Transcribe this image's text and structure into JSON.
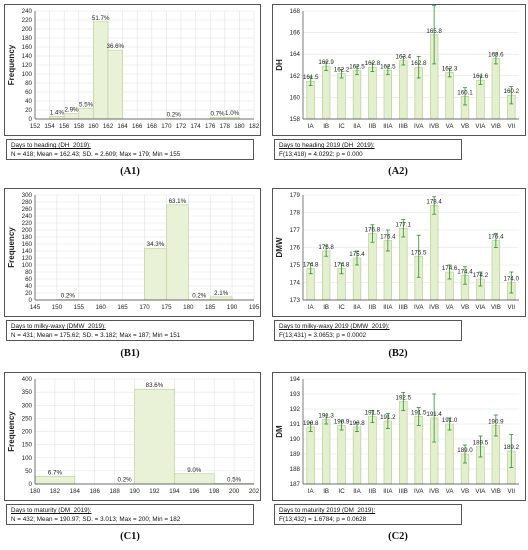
{
  "panels": {
    "A1": {
      "label": "(A1)",
      "caption_line1": "Days to heading (DH_2019):",
      "caption_line2": "N = 418; Mean = 162.43; SD. = 2.609; Max = 179; Min = 155"
    },
    "A2": {
      "label": "(A2)",
      "caption_line1": "Days to heading 2019 (DH_2019):",
      "caption_line2": "F(13;418) = 4.0292; p = 0.000"
    },
    "B1": {
      "label": "(B1)",
      "caption_line1": "Days to milky-waxy (DMW_2019):",
      "caption_line2": "N = 431; Mean = 175.62; SD. = 3.182; Max = 187; Min = 151"
    },
    "B2": {
      "label": "(B2)",
      "caption_line1": "Days to milky-waxy 2019 (DMW_2019):",
      "caption_line2": "F(13;431) = 3.0653; p = 0.0002"
    },
    "C1": {
      "label": "(C1)",
      "caption_line1": "Days to maturity (DM_2019):",
      "caption_line2": "N = 432; Mean = 190.97; SD. = 3.013; Max = 200; Min = 182"
    },
    "C2": {
      "label": "(C2)",
      "caption_line1": "Days to maturity 2019 (DM_2019):",
      "caption_line2": "F(13;432) = 1.6784; p = 0.0628"
    }
  },
  "chart_data": [
    {
      "id": "A1",
      "type": "bar",
      "ylabel": "Frequency",
      "xlabel": "",
      "xlim": [
        152,
        182
      ],
      "ylim": [
        0,
        240
      ],
      "bin_width": 2,
      "xticks": [
        152,
        154,
        156,
        158,
        160,
        162,
        164,
        166,
        168,
        170,
        172,
        174,
        176,
        178,
        180,
        182
      ],
      "yticks": [
        0,
        20,
        40,
        60,
        80,
        100,
        120,
        140,
        160,
        180,
        200,
        220,
        240
      ],
      "bins": [
        {
          "start": 154,
          "end": 156,
          "count": 6,
          "label": "1.4%"
        },
        {
          "start": 156,
          "end": 158,
          "count": 12,
          "label": "2.9%"
        },
        {
          "start": 158,
          "end": 160,
          "count": 23,
          "label": "5.5%"
        },
        {
          "start": 160,
          "end": 162,
          "count": 216,
          "label": "51.7%"
        },
        {
          "start": 162,
          "end": 164,
          "count": 153,
          "label": "36.6%"
        },
        {
          "start": 164,
          "end": 166,
          "count": 0,
          "label": ""
        },
        {
          "start": 166,
          "end": 168,
          "count": 0,
          "label": ""
        },
        {
          "start": 168,
          "end": 170,
          "count": 0,
          "label": ""
        },
        {
          "start": 170,
          "end": 172,
          "count": 1,
          "label": "0.2%"
        },
        {
          "start": 172,
          "end": 174,
          "count": 0,
          "label": ""
        },
        {
          "start": 174,
          "end": 176,
          "count": 0,
          "label": ""
        },
        {
          "start": 176,
          "end": 178,
          "count": 3,
          "label": "0.7%"
        },
        {
          "start": 178,
          "end": 180,
          "count": 4,
          "label": "1.0%"
        }
      ]
    },
    {
      "id": "A2",
      "type": "bar",
      "ylabel": "DH",
      "xlabel": "",
      "ylim": [
        158,
        168
      ],
      "yticks": [
        158,
        160,
        162,
        164,
        166,
        168
      ],
      "categories": [
        "IA",
        "IB",
        "IC",
        "IIA",
        "IIB",
        "IIIA",
        "IIIB",
        "IVA",
        "IVB",
        "VA",
        "VB",
        "VIA",
        "VIB",
        "VII"
      ],
      "values": [
        161.5,
        162.9,
        162.2,
        162.5,
        162.8,
        162.5,
        163.4,
        162.8,
        165.8,
        162.3,
        160.1,
        161.6,
        163.6,
        160.2
      ],
      "errors": [
        0.4,
        0.4,
        0.4,
        0.4,
        0.4,
        0.4,
        0.4,
        1.0,
        2.7,
        0.4,
        0.8,
        0.4,
        0.5,
        0.8
      ],
      "value_labels": [
        "161.5",
        "162.9",
        "162.2",
        "162.5",
        "162.8",
        "162.5",
        "163.4",
        "162.8",
        "165.8",
        "162.3",
        "160.1",
        "161.6",
        "163.6",
        "160.2"
      ]
    },
    {
      "id": "B1",
      "type": "bar",
      "ylabel": "Frequency",
      "xlabel": "",
      "xlim": [
        145,
        195
      ],
      "ylim": [
        0,
        300
      ],
      "bin_width": 5,
      "xticks": [
        145,
        150,
        155,
        160,
        165,
        170,
        175,
        180,
        185,
        190,
        195
      ],
      "yticks": [
        0,
        20,
        40,
        60,
        80,
        100,
        120,
        140,
        160,
        180,
        200,
        220,
        240,
        260,
        280,
        300
      ],
      "bins": [
        {
          "start": 150,
          "end": 155,
          "count": 1,
          "label": "0.2%"
        },
        {
          "start": 155,
          "end": 160,
          "count": 0,
          "label": ""
        },
        {
          "start": 160,
          "end": 165,
          "count": 0,
          "label": ""
        },
        {
          "start": 165,
          "end": 170,
          "count": 0,
          "label": ""
        },
        {
          "start": 170,
          "end": 175,
          "count": 148,
          "label": "34.3%"
        },
        {
          "start": 175,
          "end": 180,
          "count": 272,
          "label": "63.1%"
        },
        {
          "start": 180,
          "end": 185,
          "count": 1,
          "label": "0.2%"
        },
        {
          "start": 185,
          "end": 190,
          "count": 9,
          "label": "2.1%"
        }
      ]
    },
    {
      "id": "B2",
      "type": "bar",
      "ylabel": "DMW",
      "xlabel": "",
      "ylim": [
        173,
        179
      ],
      "yticks": [
        173,
        174,
        175,
        176,
        177,
        178,
        179
      ],
      "categories": [
        "IA",
        "IB",
        "IC",
        "IIA",
        "IIB",
        "IIIA",
        "IIIB",
        "IVA",
        "IVB",
        "VA",
        "VB",
        "VIA",
        "VIB",
        "VII"
      ],
      "values": [
        174.8,
        175.8,
        174.8,
        175.4,
        176.8,
        176.4,
        177.1,
        175.5,
        178.4,
        174.6,
        174.4,
        174.2,
        176.4,
        174.0
      ],
      "errors": [
        0.3,
        0.3,
        0.3,
        0.4,
        0.5,
        0.6,
        0.5,
        1.2,
        0.5,
        0.4,
        0.5,
        0.4,
        0.4,
        0.6
      ],
      "value_labels": [
        "174.8",
        "175.8",
        "174.8",
        "175.4",
        "176.8",
        "176.4",
        "177.1",
        "175.5",
        "178.4",
        "174.6",
        "174.4",
        "174.2",
        "176.4",
        "174.0"
      ]
    },
    {
      "id": "C1",
      "type": "bar",
      "ylabel": "Frequency",
      "xlabel": "",
      "xlim": [
        180,
        202
      ],
      "ylim": [
        0,
        400
      ],
      "bin_width": 4,
      "xticks": [
        180,
        182,
        184,
        186,
        188,
        190,
        192,
        194,
        196,
        198,
        200,
        202
      ],
      "yticks": [
        0,
        50,
        100,
        150,
        200,
        250,
        300,
        350,
        400
      ],
      "bins": [
        {
          "start": 180,
          "end": 184,
          "count": 29,
          "label": "6.7%"
        },
        {
          "start": 184,
          "end": 188,
          "count": 0,
          "label": ""
        },
        {
          "start": 188,
          "end": 190,
          "count": 1,
          "label": "0.2%"
        },
        {
          "start": 190,
          "end": 194,
          "count": 361,
          "label": "83.6%"
        },
        {
          "start": 194,
          "end": 198,
          "count": 39,
          "label": "9.0%"
        },
        {
          "start": 198,
          "end": 202,
          "count": 2,
          "label": "0.5%"
        }
      ]
    },
    {
      "id": "C2",
      "type": "bar",
      "ylabel": "DM",
      "xlabel": "",
      "ylim": [
        187,
        194
      ],
      "yticks": [
        187,
        188,
        189,
        190,
        191,
        192,
        193,
        194
      ],
      "categories": [
        "IA",
        "IB",
        "IC",
        "IIA",
        "IIB",
        "IIIA",
        "IIIB",
        "IVA",
        "IVB",
        "VA",
        "VB",
        "VIA",
        "VIB",
        "VII"
      ],
      "values": [
        190.8,
        191.3,
        190.9,
        190.8,
        191.5,
        191.2,
        192.5,
        191.5,
        191.4,
        191.0,
        189.0,
        189.5,
        190.9,
        189.2
      ],
      "errors": [
        0.3,
        0.3,
        0.3,
        0.3,
        0.4,
        0.5,
        0.6,
        0.6,
        1.6,
        0.4,
        0.6,
        0.7,
        0.7,
        1.1
      ],
      "value_labels": [
        "190.8",
        "191.3",
        "190.9",
        "190.8",
        "191.5",
        "191.2",
        "192.5",
        "191.5",
        "191.4",
        "191.0",
        "189.0",
        "189.5",
        "190.9",
        "189.2"
      ]
    }
  ]
}
